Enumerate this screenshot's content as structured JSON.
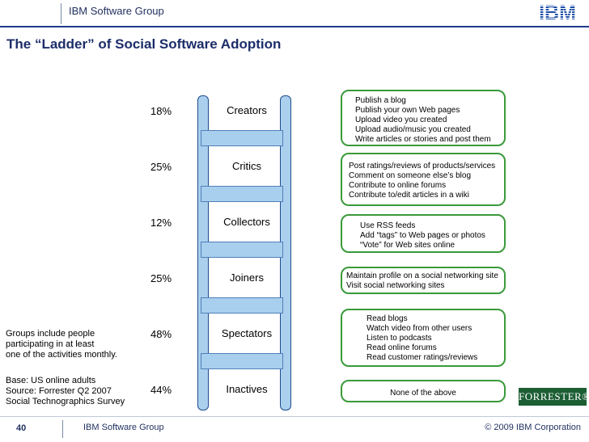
{
  "header": {
    "group": "IBM Software Group",
    "logo_text": "IBM"
  },
  "title": "The “Ladder” of Social Software Adoption",
  "ladder": [
    {
      "label": "Creators",
      "percent": "18%"
    },
    {
      "label": "Critics",
      "percent": "25%"
    },
    {
      "label": "Collectors",
      "percent": "12%"
    },
    {
      "label": "Joiners",
      "percent": "25%"
    },
    {
      "label": "Spectators",
      "percent": "48%"
    },
    {
      "label": "Inactives",
      "percent": "44%"
    }
  ],
  "activities": [
    [
      "Publish a blog",
      "Publish your own Web pages",
      "Upload video you created",
      "Upload audio/music you created",
      "Write articles or stories and post them"
    ],
    [
      "Post ratings/reviews of products/services",
      "Comment on someone else’s blog",
      "Contribute to online forums",
      "Contribute to/edit articles in a wiki"
    ],
    [
      "Use RSS  feeds",
      "Add “tags” to Web pages or photos",
      "“Vote” for Web sites online"
    ],
    [
      "Maintain profile on a social networking site",
      "Visit social networking sites"
    ],
    [
      "Read blogs",
      "Watch video from other users",
      "Listen to podcasts",
      "Read online forums",
      "Read customer ratings/reviews"
    ],
    [
      "None of the above"
    ]
  ],
  "notes": {
    "groups": [
      "Groups include people",
      "participating in at least",
      "one of the activities monthly."
    ],
    "base": [
      "Base: US online adults",
      "Source: Forrester Q2 2007",
      "Social Technographics Survey"
    ]
  },
  "forrester_logo": "FORRESTER®",
  "footer": {
    "page": "40",
    "group": "IBM Software Group",
    "copyright": "© 2009 IBM Corporation"
  },
  "colors": {
    "navy": "#1c2d6a",
    "ladder_fill": "#abd0ee",
    "box_border": "#3a9a3a",
    "forrester_green": "#1c5e34"
  }
}
